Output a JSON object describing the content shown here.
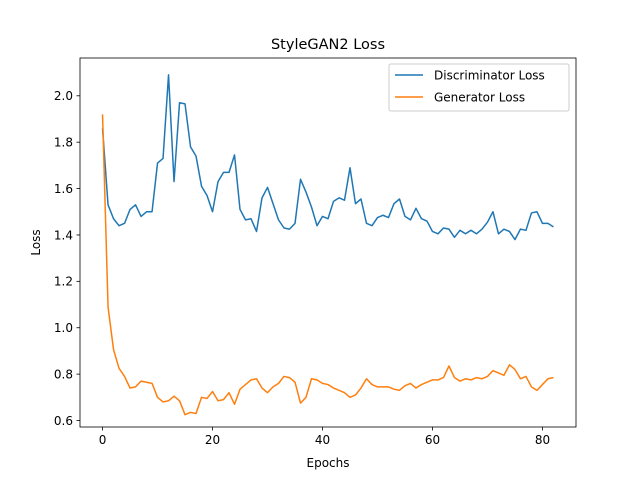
{
  "chart_data": {
    "type": "line",
    "title": "StyleGAN2 Loss",
    "xlabel": "Epochs",
    "ylabel": "Loss",
    "xlim": [
      -4.1,
      86.1
    ],
    "ylim": [
      0.572,
      2.163
    ],
    "xticks": [
      0,
      20,
      40,
      60,
      80
    ],
    "yticks": [
      0.6,
      0.8,
      1.0,
      1.2,
      1.4,
      1.6,
      1.8,
      2.0
    ],
    "xtick_labels": [
      "0",
      "20",
      "40",
      "60",
      "80"
    ],
    "ytick_labels": [
      "0.6",
      "0.8",
      "1.0",
      "1.2",
      "1.4",
      "1.6",
      "1.8",
      "2.0"
    ],
    "grid": false,
    "legend_position": "upper right",
    "x": [
      0,
      1,
      2,
      3,
      4,
      5,
      6,
      7,
      8,
      9,
      10,
      11,
      12,
      13,
      14,
      15,
      16,
      17,
      18,
      19,
      20,
      21,
      22,
      23,
      24,
      25,
      26,
      27,
      28,
      29,
      30,
      31,
      32,
      33,
      34,
      35,
      36,
      37,
      38,
      39,
      40,
      41,
      42,
      43,
      44,
      45,
      46,
      47,
      48,
      49,
      50,
      51,
      52,
      53,
      54,
      55,
      56,
      57,
      58,
      59,
      60,
      61,
      62,
      63,
      64,
      65,
      66,
      67,
      68,
      69,
      70,
      71,
      72,
      73,
      74,
      75,
      76,
      77,
      78,
      79,
      80,
      81,
      82
    ],
    "series": [
      {
        "name": "Discriminator Loss",
        "color": "#1f77b4",
        "values": [
          1.86,
          1.53,
          1.47,
          1.44,
          1.45,
          1.51,
          1.53,
          1.48,
          1.5,
          1.5,
          1.71,
          1.73,
          2.09,
          1.63,
          1.97,
          1.965,
          1.78,
          1.74,
          1.61,
          1.57,
          1.5,
          1.63,
          1.67,
          1.67,
          1.745,
          1.51,
          1.465,
          1.47,
          1.415,
          1.56,
          1.605,
          1.535,
          1.465,
          1.43,
          1.425,
          1.45,
          1.64,
          1.585,
          1.52,
          1.44,
          1.48,
          1.47,
          1.545,
          1.56,
          1.55,
          1.69,
          1.535,
          1.555,
          1.45,
          1.44,
          1.475,
          1.485,
          1.475,
          1.535,
          1.555,
          1.48,
          1.465,
          1.515,
          1.47,
          1.46,
          1.415,
          1.405,
          1.43,
          1.425,
          1.39,
          1.42,
          1.405,
          1.42,
          1.405,
          1.425,
          1.455,
          1.5,
          1.405,
          1.425,
          1.415,
          1.38,
          1.425,
          1.42,
          1.495,
          1.5,
          1.45,
          1.45,
          1.435
        ]
      },
      {
        "name": "Generator Loss",
        "color": "#ff7f0e",
        "values": [
          1.92,
          1.09,
          0.905,
          0.825,
          0.79,
          0.74,
          0.745,
          0.77,
          0.765,
          0.76,
          0.7,
          0.68,
          0.685,
          0.705,
          0.685,
          0.625,
          0.635,
          0.63,
          0.7,
          0.695,
          0.725,
          0.685,
          0.69,
          0.72,
          0.67,
          0.735,
          0.755,
          0.775,
          0.78,
          0.74,
          0.72,
          0.745,
          0.76,
          0.79,
          0.785,
          0.765,
          0.675,
          0.7,
          0.78,
          0.775,
          0.76,
          0.755,
          0.74,
          0.73,
          0.72,
          0.7,
          0.71,
          0.74,
          0.78,
          0.755,
          0.745,
          0.745,
          0.745,
          0.735,
          0.73,
          0.75,
          0.76,
          0.74,
          0.755,
          0.765,
          0.775,
          0.775,
          0.785,
          0.835,
          0.785,
          0.77,
          0.78,
          0.775,
          0.785,
          0.78,
          0.79,
          0.815,
          0.805,
          0.795,
          0.84,
          0.82,
          0.78,
          0.79,
          0.745,
          0.73,
          0.755,
          0.78,
          0.785
        ]
      }
    ]
  }
}
